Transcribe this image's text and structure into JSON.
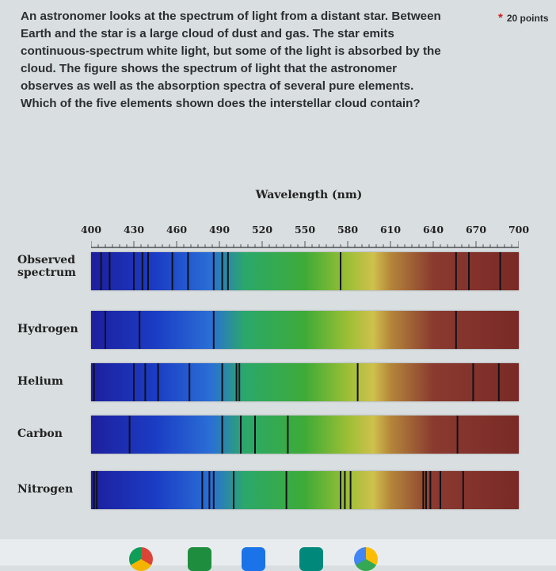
{
  "question": {
    "text": "An astronomer looks at the spectrum of light from a distant star. Between\nEarth and the star is a large cloud of dust and gas. The star emits\ncontinuous-spectrum white light, but some of the light is absorbed by the\ncloud. The figure shows the spectrum of light that the astronomer\nobserves as well as the absorption spectra of several pure elements.\nWhich of the five elements shown does the interstellar cloud contain?",
    "required_marker": "*",
    "points": "20 points"
  },
  "figure": {
    "axis_title": "Wavelength (nm)",
    "ticks": [
      "400",
      "430",
      "460",
      "490",
      "520",
      "550",
      "580",
      "610",
      "640",
      "670",
      "700"
    ],
    "rows": [
      {
        "label": "Observed\nspectrum",
        "lines": [
          407,
          413,
          430,
          436,
          440,
          457,
          468,
          486,
          492,
          496,
          575,
          656,
          665,
          687
        ]
      },
      {
        "label": "Hydrogen",
        "lines": [
          410,
          434,
          486,
          656
        ]
      },
      {
        "label": "Helium",
        "lines": [
          402,
          430,
          438,
          447,
          469,
          492,
          502,
          504,
          587,
          668,
          686
        ]
      },
      {
        "label": "Carbon",
        "lines": [
          427,
          492,
          505,
          515,
          538,
          657
        ]
      },
      {
        "label": "Nitrogen",
        "lines": [
          402,
          404,
          478,
          483,
          486,
          500,
          537,
          575,
          578,
          582,
          633,
          635,
          638,
          645,
          661
        ]
      }
    ]
  },
  "taskbar": {
    "icons": [
      "chrome-icon",
      "classroom-icon",
      "files-icon",
      "meet-icon",
      "drive-icon"
    ]
  }
}
